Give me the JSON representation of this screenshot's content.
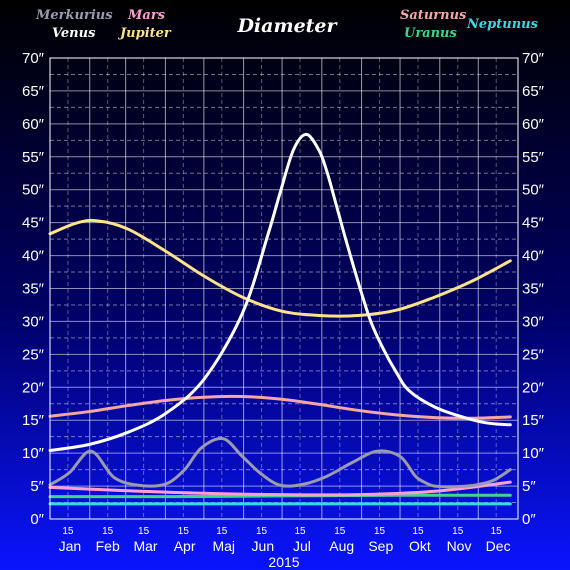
{
  "chart_data": {
    "type": "line",
    "title": "Diameter",
    "year": "2015",
    "unit_suffix": "″",
    "ylim": [
      0,
      70
    ],
    "y_ticks": [
      "0″",
      "5″",
      "10″",
      "15″",
      "20″",
      "25″",
      "30″",
      "35″",
      "40″",
      "45″",
      "50″",
      "55″",
      "60″",
      "65″",
      "70″"
    ],
    "x_months": [
      "Jan",
      "Feb",
      "Mar",
      "Apr",
      "Maj",
      "Jun",
      "Jul",
      "Aug",
      "Sep",
      "Okt",
      "Nov",
      "Dec"
    ],
    "day_label": "15",
    "grid": true,
    "series": [
      {
        "name": "Merkurius",
        "color": "#9a9ab0",
        "x": [
          0,
          15,
          32,
          50,
          70,
          90,
          105,
          118,
          135,
          150,
          165,
          180,
          198,
          216,
          235,
          255,
          273,
          285,
          293,
          300,
          315,
          330,
          345,
          359
        ],
        "y": [
          5.2,
          7.0,
          10.3,
          6.3,
          5.1,
          5.3,
          7.5,
          10.8,
          12.2,
          9.5,
          6.8,
          5.1,
          5.3,
          6.5,
          8.5,
          10.3,
          9.5,
          6.5,
          5.5,
          5.0,
          4.9,
          5.1,
          5.8,
          7.5
        ]
      },
      {
        "name": "Venus",
        "color": "#ffffff",
        "x": [
          0,
          30,
          60,
          90,
          120,
          150,
          170,
          180,
          190,
          200,
          210,
          216,
          222,
          230,
          240,
          250,
          260,
          270,
          280,
          300,
          320,
          340,
          359
        ],
        "y": [
          10.4,
          11.3,
          13.1,
          16.0,
          21.2,
          31.2,
          43.2,
          49.9,
          56.1,
          58.4,
          55.9,
          52.7,
          48.6,
          42.9,
          36.2,
          30.1,
          25.8,
          22.3,
          19.5,
          17.0,
          15.6,
          14.6,
          14.3
        ]
      },
      {
        "name": "Mars",
        "color": "#ff9fd0",
        "x": [
          0,
          60,
          120,
          180,
          240,
          300,
          359
        ],
        "y": [
          4.8,
          4.3,
          3.9,
          3.7,
          3.7,
          4.2,
          5.6
        ]
      },
      {
        "name": "Jupiter",
        "color": "#ffe38a",
        "x": [
          0,
          20,
          36,
          60,
          90,
          120,
          150,
          180,
          210,
          240,
          270,
          300,
          330,
          359
        ],
        "y": [
          43.3,
          44.9,
          45.3,
          44.1,
          40.7,
          36.9,
          33.7,
          31.6,
          30.9,
          30.9,
          31.7,
          33.7,
          36.2,
          39.2
        ]
      },
      {
        "name": "Saturnus",
        "color": "#f5a6a6",
        "x": [
          0,
          30,
          60,
          90,
          120,
          150,
          180,
          210,
          240,
          270,
          300,
          330,
          359
        ],
        "y": [
          15.6,
          16.3,
          17.2,
          18.0,
          18.5,
          18.6,
          18.2,
          17.4,
          16.5,
          15.8,
          15.4,
          15.3,
          15.5
        ]
      },
      {
        "name": "Uranus",
        "color": "#3cd88a",
        "x": [
          0,
          90,
          180,
          270,
          359
        ],
        "y": [
          3.4,
          3.4,
          3.5,
          3.6,
          3.6
        ]
      },
      {
        "name": "Neptunus",
        "color": "#33dddd",
        "x": [
          0,
          90,
          180,
          270,
          359
        ],
        "y": [
          2.3,
          2.3,
          2.3,
          2.3,
          2.3
        ]
      }
    ]
  }
}
